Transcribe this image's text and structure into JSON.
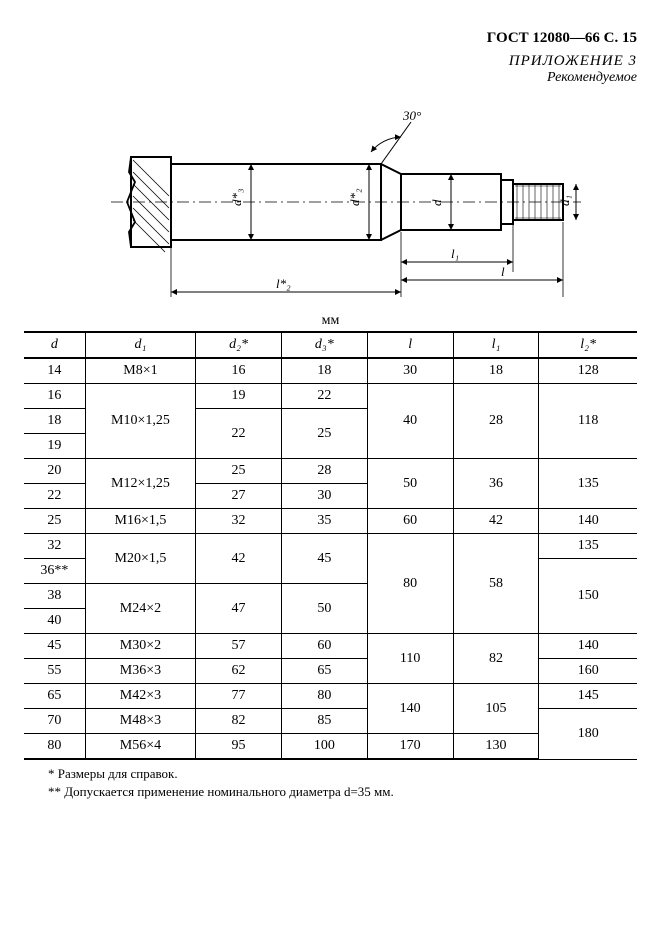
{
  "header": {
    "doc_id": "ГОСТ 12080—66 С. 15",
    "appendix": "ПРИЛОЖЕНИЕ 3",
    "appendix_sub": "Рекомендуемое"
  },
  "diagram": {
    "angle_label": "30°",
    "dims": [
      "d*₃",
      "d*₂",
      "d",
      "d₁",
      "l₁",
      "l",
      "l*₂"
    ],
    "colors": {
      "stroke": "#000000",
      "hatch": "#000000",
      "arrow": "#000000"
    }
  },
  "table": {
    "unit": "мм",
    "columns": [
      "d",
      "d₁",
      "d₂*",
      "d₃*",
      "l",
      "l₁",
      "l₂*"
    ],
    "col_widths_pct": [
      10,
      18,
      14,
      14,
      14,
      14,
      16
    ],
    "rows": [
      {
        "d": "14",
        "d1": "М8×1",
        "d2": "16",
        "d3": "18",
        "l": "30",
        "l1": "18",
        "l2": "128",
        "d1_span": 1,
        "d2_span": 1,
        "d3_span": 1,
        "l_span": 1,
        "l1_span": 1,
        "l2_span": 1
      },
      {
        "d": "16",
        "d1": "М10×1,25",
        "d2": "19",
        "d3": "22",
        "l": "40",
        "l1": "28",
        "l2": "118",
        "d1_span": 3,
        "d2_span": 1,
        "d3_span": 1,
        "l_span": 3,
        "l1_span": 3,
        "l2_span": 3
      },
      {
        "d": "18",
        "d2": "22",
        "d3": "25",
        "d2_span": 2,
        "d3_span": 2
      },
      {
        "d": "19"
      },
      {
        "d": "20",
        "d1": "М12×1,25",
        "d2": "25",
        "d3": "28",
        "l": "50",
        "l1": "36",
        "l2": "135",
        "d1_span": 2,
        "d2_span": 1,
        "d3_span": 1,
        "l_span": 2,
        "l1_span": 2,
        "l2_span": 2
      },
      {
        "d": "22",
        "d2": "27",
        "d3": "30",
        "d2_span": 1,
        "d3_span": 1
      },
      {
        "d": "25",
        "d1": "М16×1,5",
        "d2": "32",
        "d3": "35",
        "l": "60",
        "l1": "42",
        "l2": "140",
        "d1_span": 1,
        "d2_span": 1,
        "d3_span": 1,
        "l_span": 1,
        "l1_span": 1,
        "l2_span": 1
      },
      {
        "d": "32",
        "d1": "М20×1,5",
        "d2": "42",
        "d3": "45",
        "l": "80",
        "l1": "58",
        "l2": "135",
        "d1_span": 2,
        "d2_span": 2,
        "d3_span": 2,
        "l_span": 4,
        "l1_span": 4,
        "l2_span": 1
      },
      {
        "d": "36**",
        "l2": "150",
        "l2_span": 3
      },
      {
        "d": "38",
        "d1": "М24×2",
        "d2": "47",
        "d3": "50",
        "d1_span": 2,
        "d2_span": 2,
        "d3_span": 2
      },
      {
        "d": "40"
      },
      {
        "d": "45",
        "d1": "М30×2",
        "d2": "57",
        "d3": "60",
        "l": "110",
        "l1": "82",
        "l2": "140",
        "d1_span": 1,
        "d2_span": 1,
        "d3_span": 1,
        "l_span": 2,
        "l1_span": 2,
        "l2_span": 1
      },
      {
        "d": "55",
        "d1": "М36×3",
        "d2": "62",
        "d3": "65",
        "l2": "160",
        "d1_span": 1,
        "d2_span": 1,
        "d3_span": 1,
        "l2_span": 1
      },
      {
        "d": "65",
        "d1": "М42×3",
        "d2": "77",
        "d3": "80",
        "l": "140",
        "l1": "105",
        "l2": "145",
        "d1_span": 1,
        "d2_span": 1,
        "d3_span": 1,
        "l_span": 2,
        "l1_span": 2,
        "l2_span": 1
      },
      {
        "d": "70",
        "d1": "М48×3",
        "d2": "82",
        "d3": "85",
        "l2": "180",
        "d1_span": 1,
        "d2_span": 1,
        "d3_span": 1,
        "l2_span": 2
      },
      {
        "d": "80",
        "d1": "М56×4",
        "d2": "95",
        "d3": "100",
        "l": "170",
        "l1": "130",
        "d1_span": 1,
        "d2_span": 1,
        "d3_span": 1,
        "l_span": 1,
        "l1_span": 1
      }
    ]
  },
  "footnotes": {
    "n1": "* Размеры для справок.",
    "n2": "** Допускается применение номинального диаметра d=35 мм."
  }
}
